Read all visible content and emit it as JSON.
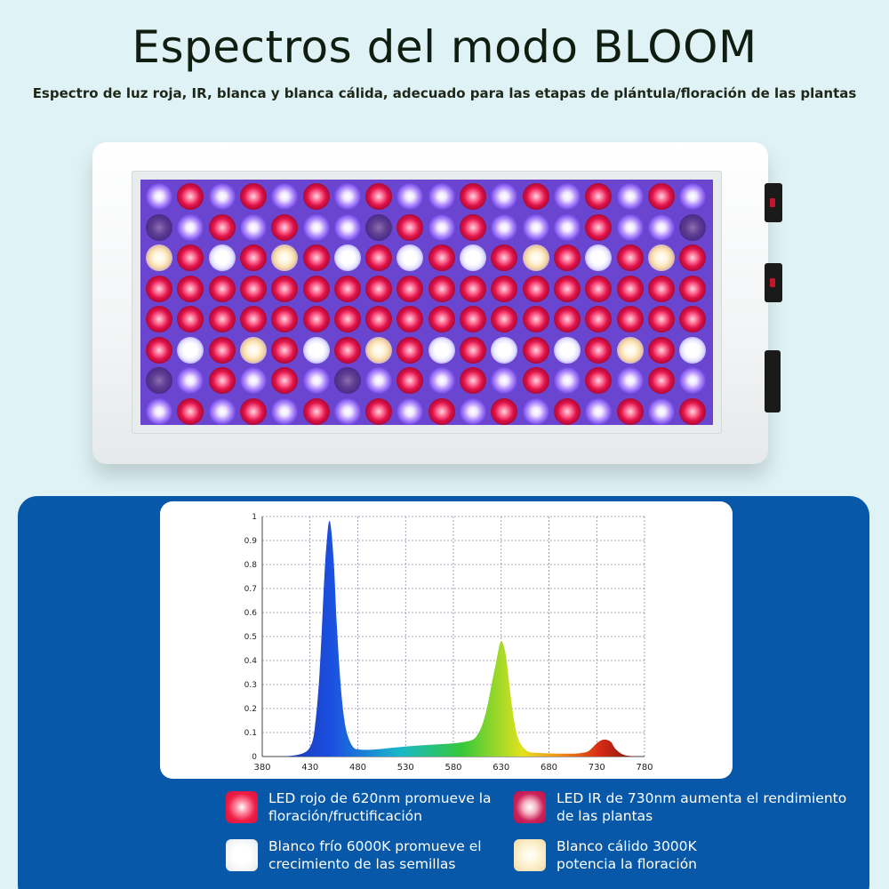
{
  "header": {
    "title": "Espectros del modo BLOOM",
    "subtitle": "Espectro de luz roja, IR, blanca y blanca cálida, adecuado para las etapas de plántula/floración de las plantas"
  },
  "lamp": {
    "led_rows": [
      [
        "blue",
        "red",
        "blue",
        "red",
        "blue",
        "red",
        "blue",
        "red",
        "blue",
        "blue",
        "red",
        "blue",
        "red",
        "blue",
        "red",
        "blue",
        "red",
        "blue"
      ],
      [
        "ir",
        "blue",
        "red",
        "blue",
        "red",
        "blue",
        "blue",
        "ir",
        "red",
        "blue",
        "red",
        "blue",
        "blue",
        "blue",
        "red",
        "blue",
        "blue",
        "ir"
      ],
      [
        "warm",
        "red",
        "white",
        "red",
        "warm",
        "red",
        "white",
        "red",
        "white",
        "red",
        "white",
        "red",
        "warm",
        "red",
        "white",
        "red",
        "warm",
        "red"
      ],
      [
        "red",
        "red",
        "red",
        "red",
        "red",
        "red",
        "red",
        "red",
        "red",
        "red",
        "red",
        "red",
        "red",
        "red",
        "red",
        "red",
        "red",
        "red"
      ],
      [
        "red",
        "red",
        "red",
        "red",
        "red",
        "red",
        "red",
        "red",
        "red",
        "red",
        "red",
        "red",
        "red",
        "red",
        "red",
        "red",
        "red",
        "red"
      ],
      [
        "red",
        "white",
        "red",
        "warm",
        "red",
        "white",
        "red",
        "warm",
        "red",
        "white",
        "red",
        "white",
        "red",
        "white",
        "red",
        "warm",
        "red",
        "white"
      ],
      [
        "ir",
        "blue",
        "red",
        "blue",
        "red",
        "blue",
        "ir",
        "blue",
        "red",
        "blue",
        "red",
        "blue",
        "red",
        "blue",
        "red",
        "blue",
        "red",
        "blue"
      ],
      [
        "blue",
        "red",
        "blue",
        "red",
        "blue",
        "red",
        "blue",
        "red",
        "blue",
        "red",
        "blue",
        "red",
        "blue",
        "red",
        "blue",
        "red",
        "blue",
        "red"
      ]
    ]
  },
  "chart_data": {
    "type": "area",
    "title": "",
    "xlabel": "",
    "ylabel": "",
    "xlim": [
      380,
      780
    ],
    "ylim": [
      0,
      1
    ],
    "x_ticks": [
      "380",
      "430",
      "480",
      "530",
      "580",
      "630",
      "680",
      "730",
      "780"
    ],
    "y_ticks": [
      "0",
      "0.1",
      "0.2",
      "0.3",
      "0.4",
      "0.5",
      "0.6",
      "0.7",
      "0.8",
      "0.9",
      "1"
    ],
    "grid": true,
    "x": [
      380,
      400,
      420,
      430,
      435,
      440,
      445,
      448,
      450,
      452,
      455,
      458,
      462,
      466,
      470,
      475,
      480,
      490,
      500,
      520,
      540,
      560,
      580,
      590,
      600,
      605,
      610,
      615,
      620,
      625,
      628,
      630,
      632,
      635,
      638,
      642,
      646,
      650,
      655,
      660,
      670,
      680,
      690,
      700,
      710,
      720,
      725,
      730,
      735,
      740,
      745,
      750,
      760,
      780
    ],
    "y": [
      0,
      0,
      0.01,
      0.04,
      0.12,
      0.35,
      0.75,
      0.92,
      0.98,
      0.95,
      0.8,
      0.55,
      0.3,
      0.15,
      0.08,
      0.04,
      0.03,
      0.028,
      0.03,
      0.038,
      0.045,
      0.05,
      0.055,
      0.06,
      0.07,
      0.09,
      0.13,
      0.2,
      0.3,
      0.4,
      0.46,
      0.48,
      0.47,
      0.42,
      0.32,
      0.19,
      0.1,
      0.055,
      0.03,
      0.018,
      0.015,
      0.013,
      0.012,
      0.012,
      0.013,
      0.02,
      0.035,
      0.055,
      0.068,
      0.07,
      0.06,
      0.03,
      0.005,
      0
    ],
    "colors": {
      "violet": "#1a2d9a",
      "blue": "#1b4fe0",
      "cyan": "#19b7c9",
      "green": "#34c93a",
      "yellow": "#e2e21e",
      "orange": "#f28d16",
      "red": "#d62d14",
      "dark_red": "#6e0c0c"
    }
  },
  "legend": {
    "items": [
      {
        "swatch": "red",
        "line1": "LED rojo de 620nm promueve la",
        "line2": "floración/fructificación"
      },
      {
        "swatch": "ir",
        "line1": "LED IR de 730nm aumenta el rendimiento",
        "line2": "de las plantas"
      },
      {
        "swatch": "cool",
        "line1": "Blanco frío 6000K promueve el",
        "line2": "crecimiento de las semillas"
      },
      {
        "swatch": "warm",
        "line1": "Blanco cálido 3000K",
        "line2": "potencia la floración"
      }
    ]
  },
  "colors": {
    "background": "#dff3f6",
    "panel_blue": "#0758a8",
    "title": "#0f1e10"
  }
}
